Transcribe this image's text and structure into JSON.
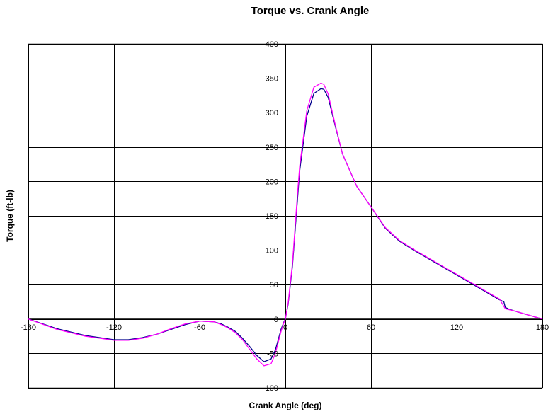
{
  "chart_data": {
    "type": "line",
    "title": "Torque vs. Crank Angle",
    "xlabel": "Crank Angle (deg)",
    "ylabel": "Torque (ft-lb)",
    "xlim": [
      -180,
      180
    ],
    "ylim": [
      -100,
      400
    ],
    "x_ticks": [
      -180,
      -120,
      -60,
      0,
      60,
      120,
      180
    ],
    "y_ticks": [
      -100,
      -50,
      0,
      50,
      100,
      150,
      200,
      250,
      300,
      350,
      400
    ],
    "x_tick_labels": [
      "-180",
      "-120",
      "-60",
      "0",
      "60",
      "120",
      "180"
    ],
    "y_tick_labels": [
      "-100",
      "-50",
      "0",
      "50",
      "100",
      "150",
      "200",
      "250",
      "300",
      "350",
      "400"
    ],
    "grid": true,
    "legend": "none",
    "colors": {
      "series_1": "#00008b",
      "series_2": "#ff00ff",
      "grid": "#000000",
      "plot_border": "#808080"
    },
    "series": [
      {
        "color": "#00008b",
        "x": [
          -180,
          -160,
          -140,
          -120,
          -110,
          -100,
          -90,
          -80,
          -70,
          -60,
          -50,
          -45,
          -40,
          -35,
          -30,
          -25,
          -20,
          -15,
          -10,
          -7,
          -5,
          -3,
          -1,
          0,
          2,
          5,
          8,
          10,
          15,
          20,
          25,
          27,
          30,
          35,
          40,
          50,
          60,
          70,
          80,
          90,
          100,
          110,
          120,
          130,
          140,
          150,
          153,
          154,
          156,
          160,
          170,
          180
        ],
        "y": [
          0,
          -14,
          -24,
          -30,
          -30,
          -27,
          -22,
          -15,
          -8,
          -3,
          -4,
          -7,
          -12,
          -18,
          -28,
          -40,
          -53,
          -62,
          -58,
          -45,
          -30,
          -15,
          -4,
          0,
          22,
          78,
          160,
          215,
          295,
          328,
          335,
          334,
          322,
          280,
          240,
          193,
          163,
          132,
          113,
          100,
          88,
          76,
          64,
          52,
          40,
          28,
          25,
          17,
          15,
          12,
          6,
          0
        ]
      },
      {
        "color": "#ff00ff",
        "x": [
          -180,
          -160,
          -140,
          -120,
          -110,
          -100,
          -90,
          -80,
          -70,
          -60,
          -50,
          -45,
          -40,
          -35,
          -30,
          -25,
          -20,
          -15,
          -10,
          -7,
          -5,
          -3,
          -1,
          0,
          2,
          5,
          8,
          10,
          15,
          20,
          25,
          27,
          30,
          35,
          40,
          50,
          60,
          70,
          80,
          90,
          100,
          110,
          120,
          130,
          140,
          150,
          152,
          154,
          156,
          160,
          170,
          180
        ],
        "y": [
          0,
          -15,
          -25,
          -31,
          -31,
          -28,
          -22,
          -14,
          -7,
          -3,
          -4,
          -8,
          -13,
          -20,
          -30,
          -44,
          -58,
          -68,
          -65,
          -50,
          -34,
          -18,
          -5,
          0,
          24,
          82,
          168,
          222,
          303,
          337,
          343,
          341,
          327,
          282,
          240,
          193,
          163,
          133,
          114,
          101,
          89,
          77,
          65,
          53,
          41,
          29,
          22,
          15,
          14,
          12,
          6,
          0
        ]
      }
    ]
  }
}
